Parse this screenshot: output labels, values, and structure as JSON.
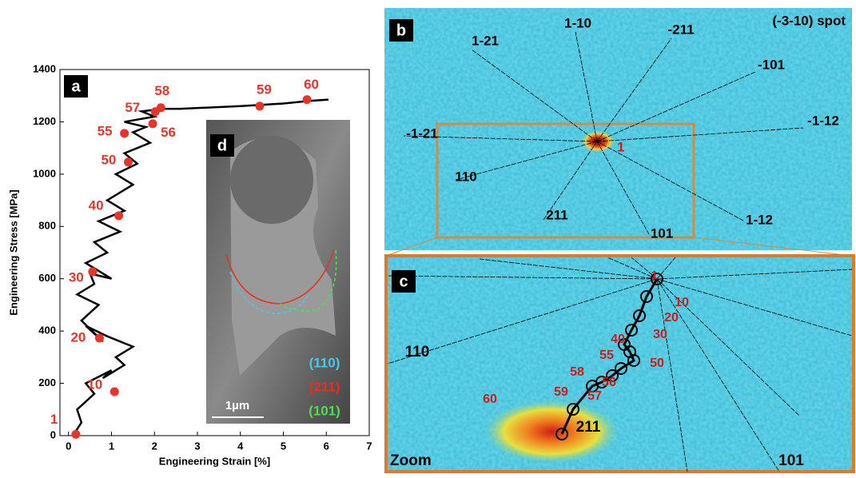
{
  "chart_data": {
    "type": "line",
    "panel_label": "a",
    "xlabel": "Engineering Strain [%]",
    "ylabel": "Engineering Stress [MPa]",
    "xlim": [
      -0.2,
      7
    ],
    "ylim": [
      0,
      1400
    ],
    "xticks": [
      0,
      1,
      2,
      3,
      4,
      5,
      6,
      7
    ],
    "yticks": [
      0,
      200,
      400,
      600,
      800,
      1000,
      1200,
      1400
    ],
    "curve": {
      "color": "#000000",
      "x": [
        0.1,
        0.3,
        0.2,
        0.6,
        0.4,
        1.0,
        0.8,
        1.3,
        1.1,
        1.5,
        0.9,
        0.4,
        0.8,
        0.3,
        0.7,
        0.2,
        0.6,
        0.5,
        1.0,
        0.4,
        0.9,
        0.6,
        1.2,
        0.7,
        1.3,
        0.9,
        1.5,
        1.1,
        1.6,
        1.3,
        1.9,
        1.5,
        1.8,
        1.3,
        2.0,
        1.7,
        2.2,
        2.6,
        4.0,
        5.0,
        5.6,
        6.05
      ],
      "y": [
        0,
        50,
        100,
        160,
        200,
        250,
        220,
        270,
        300,
        340,
        380,
        420,
        360,
        440,
        500,
        540,
        580,
        620,
        600,
        660,
        700,
        740,
        780,
        820,
        860,
        900,
        960,
        1000,
        1040,
        1080,
        1120,
        1160,
        1180,
        1200,
        1220,
        1240,
        1250,
        1250,
        1260,
        1270,
        1280,
        1285
      ]
    },
    "points": {
      "color": "#e8352a",
      "labels": [
        "1",
        "10",
        "20",
        "30",
        "40",
        "50",
        "55",
        "56",
        "57",
        "58",
        "59",
        "60"
      ],
      "x": [
        0.17,
        1.07,
        0.72,
        0.56,
        1.17,
        1.39,
        1.3,
        1.96,
        2.02,
        2.15,
        4.45,
        5.55
      ],
      "y": [
        5,
        168,
        373,
        627,
        841,
        1046,
        1156,
        1193,
        1239,
        1254,
        1260,
        1285
      ]
    }
  },
  "panel_b": {
    "label": "b",
    "spot": "(-3-10) spot",
    "center_label": "1",
    "directions": [
      "1-10",
      "-211",
      "1-21",
      "-101",
      "-1-12",
      "-1-21",
      "110",
      "211",
      "101",
      "1-12"
    ]
  },
  "panel_c": {
    "label": "c",
    "zoom": "Zoom",
    "center_label": "1",
    "steps": [
      "10",
      "20",
      "30",
      "40",
      "50",
      "55",
      "56",
      "57",
      "58",
      "59",
      "60"
    ],
    "end": "211",
    "directions": [
      "110",
      "101"
    ]
  },
  "panel_d": {
    "label": "d",
    "legend": [
      "(110)",
      "(211)",
      "(101)"
    ],
    "scale": "1µm"
  }
}
